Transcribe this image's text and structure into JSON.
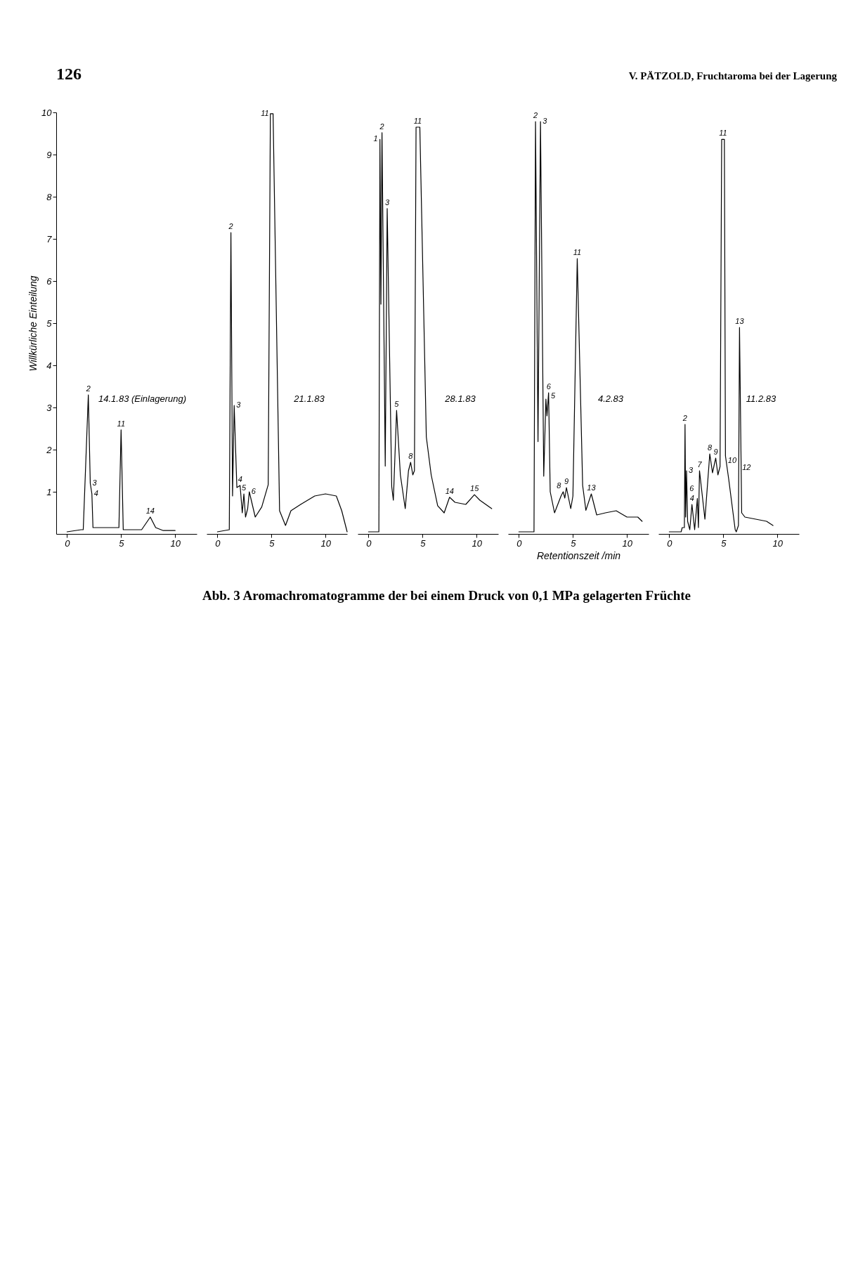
{
  "chart_data": [
    {
      "type": "line",
      "title": "14.1.83 (Einlagerung)",
      "color": "#000000",
      "xlim": [
        -1,
        12
      ],
      "ylim": [
        0,
        10
      ],
      "xticks": [
        0,
        5,
        10
      ],
      "yticks": [
        1,
        2,
        3,
        4,
        5,
        6,
        7,
        8,
        9,
        10
      ],
      "ylabel": "Willkürliche Einteilung",
      "x": [
        0,
        1.3,
        1.5,
        1.97,
        2.15,
        2.3,
        2.4,
        4.8,
        5.0,
        5.2,
        6.9,
        7.7,
        8.2,
        8.9,
        10.0
      ],
      "values": [
        0.05,
        0.1,
        0.1,
        3.3,
        1.2,
        0.95,
        0.15,
        0.15,
        2.47,
        0.1,
        0.1,
        0.4,
        0.15,
        0.08,
        0.08
      ],
      "annotations": [
        "126",
        "V. PÄTZOLD, Fruchtaroma bei der Lagerung",
        "Abb. 3 Aromachromatogramme der bei einem Druck von 0,1 MPa gelagerten Früchte",
        {
          "text": "2",
          "x": 1.97,
          "y": 3.3
        },
        {
          "text": "3",
          "x": 2.15,
          "y": 1.2
        },
        {
          "text": "4",
          "x": 2.3,
          "y": 0.95
        },
        {
          "text": "11",
          "x": 5.0,
          "y": 2.47
        },
        {
          "text": "14",
          "x": 7.7,
          "y": 0.4
        }
      ]
    },
    {
      "type": "line",
      "title": "21.1.83",
      "color": "#000000",
      "xlim": [
        -1,
        12
      ],
      "ylim": [
        0,
        10
      ],
      "xticks": [
        0,
        5,
        10
      ],
      "tick_labels": "x",
      "x": [
        0,
        1.1,
        1.25,
        1.4,
        1.55,
        1.8,
        2.1,
        2.3,
        2.45,
        2.6,
        2.8,
        2.95,
        3.5,
        4.1,
        4.7,
        4.9,
        5.15,
        5.75,
        6.3,
        6.8,
        7.7,
        9.0,
        10.0,
        11.0,
        11.5,
        12.0
      ],
      "values": [
        0.05,
        0.1,
        7.15,
        0.9,
        3.05,
        1.1,
        1.15,
        0.5,
        0.95,
        0.4,
        0.6,
        1.0,
        0.4,
        0.64,
        1.17,
        9.97,
        9.97,
        0.55,
        0.2,
        0.55,
        0.7,
        0.9,
        0.95,
        0.9,
        0.55,
        0.05
      ],
      "annotations": [
        {
          "text": "2",
          "x": 1.25,
          "y": 7.15
        },
        {
          "text": "3",
          "x": 1.55,
          "y": 3.05
        },
        {
          "text": "4",
          "x": 2.1,
          "y": 1.15
        },
        {
          "text": "5",
          "x": 2.45,
          "y": 0.95
        },
        {
          "text": "6",
          "x": 2.95,
          "y": 1.0
        },
        {
          "text": "11",
          "x": 5.0,
          "y": 9.97
        }
      ]
    },
    {
      "type": "line",
      "title": "28.1.83",
      "color": "#000000",
      "xlim": [
        -1,
        12
      ],
      "ylim": [
        0,
        10
      ],
      "xticks": [
        0,
        5,
        10
      ],
      "tick_labels": "x",
      "x": [
        0,
        0.96,
        1.06,
        1.15,
        1.25,
        1.55,
        1.73,
        2.15,
        2.3,
        2.6,
        2.95,
        3.4,
        3.7,
        3.9,
        4.1,
        4.25,
        4.4,
        4.75,
        5.35,
        5.8,
        6.4,
        7.0,
        7.5,
        8.0,
        9.0,
        9.8,
        10.3,
        11.4
      ],
      "values": [
        0.05,
        0.05,
        9.36,
        5.45,
        9.52,
        1.61,
        7.72,
        1.12,
        0.8,
        2.93,
        1.4,
        0.6,
        1.5,
        1.7,
        1.4,
        1.5,
        9.65,
        9.65,
        2.3,
        1.4,
        0.67,
        0.5,
        0.87,
        0.75,
        0.7,
        0.93,
        0.8,
        0.6
      ],
      "annotations": [
        {
          "text": "1",
          "x": 1.06,
          "y": 9.36
        },
        {
          "text": "2",
          "x": 1.25,
          "y": 9.52
        },
        {
          "text": "3",
          "x": 1.73,
          "y": 7.72
        },
        {
          "text": "5",
          "x": 2.6,
          "y": 2.93
        },
        {
          "text": "8",
          "x": 3.9,
          "y": 1.7
        },
        {
          "text": "11",
          "x": 4.55,
          "y": 9.65
        },
        {
          "text": "14",
          "x": 7.5,
          "y": 0.87
        },
        {
          "text": "15",
          "x": 9.8,
          "y": 0.93
        }
      ]
    },
    {
      "type": "line",
      "title": "4.2.83",
      "color": "#000000",
      "xlim": [
        -1,
        12
      ],
      "ylim": [
        0,
        10
      ],
      "xticks": [
        0,
        5,
        10
      ],
      "xlabel": "Retentionszeit /min",
      "tick_labels": "x",
      "x": [
        0,
        1.1,
        1.4,
        1.54,
        1.77,
        2.0,
        2.3,
        2.5,
        2.6,
        2.75,
        2.9,
        3.3,
        3.9,
        4.1,
        4.25,
        4.4,
        4.8,
        5.0,
        5.4,
        5.9,
        6.2,
        6.7,
        7.2,
        8.0,
        9.0,
        10.0,
        11.0,
        11.4
      ],
      "values": [
        0.05,
        0.05,
        0.05,
        9.78,
        2.19,
        9.78,
        1.37,
        3.2,
        2.8,
        3.35,
        1.0,
        0.5,
        0.9,
        1.0,
        0.85,
        1.1,
        0.6,
        0.9,
        6.53,
        1.15,
        0.56,
        0.95,
        0.45,
        0.5,
        0.55,
        0.4,
        0.4,
        0.3
      ],
      "annotations": [
        {
          "text": "2",
          "x": 1.54,
          "y": 9.78
        },
        {
          "text": "3",
          "x": 2.0,
          "y": 9.78
        },
        {
          "text": "5",
          "x": 2.5,
          "y": 3.2
        },
        {
          "text": "6",
          "x": 2.75,
          "y": 3.35
        },
        {
          "text": "8",
          "x": 4.1,
          "y": 1.0
        },
        {
          "text": "9",
          "x": 4.4,
          "y": 1.1
        },
        {
          "text": "11",
          "x": 5.4,
          "y": 6.53
        },
        {
          "text": "13",
          "x": 6.7,
          "y": 0.95
        }
      ]
    },
    {
      "type": "line",
      "title": "11.2.83",
      "color": "#000000",
      "xlim": [
        -1,
        12
      ],
      "ylim": [
        0,
        10
      ],
      "xticks": [
        0,
        5,
        10
      ],
      "tick_labels": "x",
      "x": [
        0,
        1.1,
        1.2,
        1.4,
        1.46,
        1.52,
        1.6,
        1.7,
        1.9,
        2.1,
        2.35,
        2.6,
        2.7,
        2.8,
        3.3,
        3.75,
        4.0,
        4.3,
        4.5,
        4.7,
        4.85,
        5.1,
        5.2,
        5.5,
        5.8,
        6.1,
        6.2,
        6.4,
        6.5,
        6.7,
        7.0,
        8.0,
        9.0,
        9.6
      ],
      "values": [
        0.05,
        0.05,
        0.15,
        0.15,
        2.6,
        0.4,
        1.5,
        0.3,
        0.1,
        0.7,
        0.1,
        0.84,
        0.15,
        1.5,
        0.35,
        1.9,
        1.45,
        1.8,
        1.4,
        1.6,
        9.36,
        9.36,
        1.85,
        1.3,
        0.7,
        0.1,
        0.05,
        0.2,
        4.9,
        0.5,
        0.4,
        0.35,
        0.3,
        0.2
      ],
      "annotations": [
        {
          "text": "2",
          "x": 1.46,
          "y": 2.6
        },
        {
          "text": "3",
          "x": 1.6,
          "y": 1.5
        },
        {
          "text": "4",
          "x": 2.1,
          "y": 0.7
        },
        {
          "text": "6",
          "x": 2.6,
          "y": 0.84
        },
        {
          "text": "7",
          "x": 2.8,
          "y": 1.5
        },
        {
          "text": "8",
          "x": 3.75,
          "y": 1.9
        },
        {
          "text": "9",
          "x": 4.3,
          "y": 1.8
        },
        {
          "text": "10",
          "x": 4.7,
          "y": 1.6
        },
        {
          "text": "11",
          "x": 4.97,
          "y": 9.36
        },
        {
          "text": "12",
          "x": 5.5,
          "y": 1.3
        },
        {
          "text": "13",
          "x": 6.5,
          "y": 4.9
        }
      ]
    }
  ]
}
